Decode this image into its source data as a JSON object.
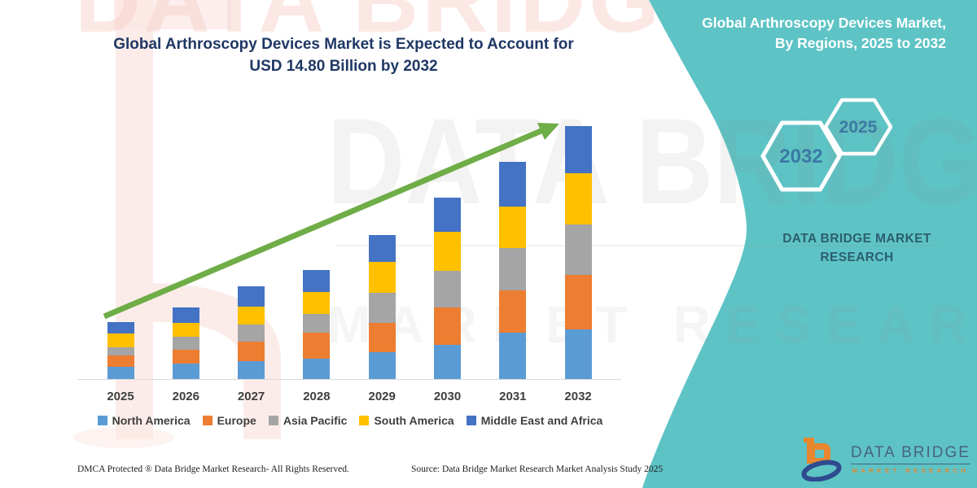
{
  "chart": {
    "title_line1": "Global Arthroscopy Devices Market is Expected to Account for",
    "title_line2": "USD 14.80 Billion by 2032"
  },
  "chart_data": {
    "type": "bar",
    "stacked": true,
    "title": "Global Arthroscopy Devices Market is Expected to Account for USD 14.80 Billion by 2032",
    "unit": "USD Billion",
    "categories": [
      "2025",
      "2026",
      "2027",
      "2028",
      "2029",
      "2030",
      "2031",
      "2032"
    ],
    "series": [
      {
        "name": "North America",
        "color": "#5B9BD5",
        "values": [
          0.7,
          0.9,
          1.05,
          1.2,
          1.55,
          2.0,
          2.7,
          2.9
        ]
      },
      {
        "name": "Europe",
        "color": "#ED7D31",
        "values": [
          0.7,
          0.8,
          1.15,
          1.5,
          1.75,
          2.2,
          2.5,
          3.2
        ]
      },
      {
        "name": "Asia Pacific",
        "color": "#A5A5A5",
        "values": [
          0.45,
          0.8,
          1.0,
          1.1,
          1.75,
          2.15,
          2.45,
          2.95
        ]
      },
      {
        "name": "South America",
        "color": "#FFC000",
        "values": [
          0.8,
          0.8,
          1.05,
          1.3,
          1.8,
          2.25,
          2.45,
          3.0
        ]
      },
      {
        "name": "Middle East and Africa",
        "color": "#4472C4",
        "values": [
          0.7,
          0.9,
          1.15,
          1.3,
          1.55,
          2.0,
          2.6,
          2.75
        ]
      }
    ],
    "totals": [
      3.35,
      4.2,
      5.4,
      6.4,
      8.4,
      10.6,
      12.7,
      14.8
    ],
    "ylim": [
      0,
      14.8
    ],
    "xlabel": "",
    "ylabel": "",
    "grid": false,
    "y_axis_shown": false,
    "legend_position": "bottom",
    "annotations": [
      "upward green trend arrow across bar tops"
    ]
  },
  "panel": {
    "title_line1": "Global Arthroscopy Devices Market,",
    "title_line2": "By Regions, 2025 to 2032",
    "hexagons": [
      {
        "label": "2032"
      },
      {
        "label": "2025"
      }
    ],
    "brand_line1": "DATA BRIDGE MARKET",
    "brand_line2": "RESEARCH"
  },
  "logo": {
    "name": "DATA BRIDGE",
    "subtitle": "MARKET RESEARCH"
  },
  "footer": {
    "dmca": "DMCA Protected ® Data Bridge Market Research-  All Rights Reserved.",
    "source": "Source: Data Bridge Market Research  Market Analysis Study 2025"
  },
  "watermark": {
    "top_text": "DATA BRIDGE",
    "row1": "DATA BRIDGE",
    "row2": "MARKET RESEARCH"
  },
  "colors": {
    "panel_teal": "#5ec3c5",
    "title_navy": "#1f3864",
    "arrow_green": "#6fad47",
    "axis_line": "#d9d9d9",
    "axis_label": "#3f3f3f",
    "hexagon_text": "#3a7aa4",
    "panel_brand_text": "#2b5f70",
    "logo_text": "#47637e",
    "logo_orange": "#e8872e",
    "logo_blue": "#2e4b8f",
    "watermark_pink": "#fbe7e4"
  }
}
